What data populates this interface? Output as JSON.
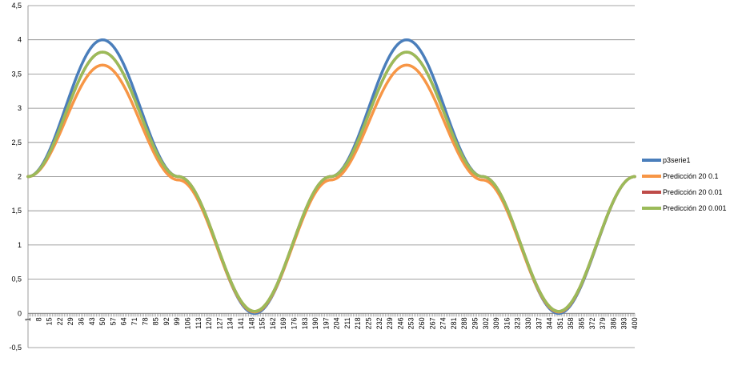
{
  "chart_data": {
    "type": "line",
    "title": "",
    "xlabel": "",
    "ylabel": "",
    "ylim": [
      -0.5,
      4.5
    ],
    "y_ticks": [
      -0.5,
      0,
      0.5,
      1,
      1.5,
      2,
      2.5,
      3,
      3.5,
      4,
      4.5
    ],
    "y_tick_labels": [
      "-0,5",
      "0",
      "0,5",
      "1",
      "1,5",
      "2",
      "2,5",
      "3",
      "3,5",
      "4",
      "4,5"
    ],
    "x_range": [
      1,
      400
    ],
    "x_tick_labels": [
      "1",
      "8",
      "15",
      "22",
      "29",
      "36",
      "43",
      "50",
      "57",
      "64",
      "71",
      "78",
      "85",
      "92",
      "99",
      "106",
      "113",
      "120",
      "127",
      "134",
      "141",
      "148",
      "155",
      "162",
      "169",
      "176",
      "183",
      "190",
      "197",
      "204",
      "211",
      "218",
      "225",
      "232",
      "239",
      "246",
      "253",
      "260",
      "267",
      "274",
      "281",
      "288",
      "295",
      "302",
      "309",
      "316",
      "323",
      "330",
      "337",
      "344",
      "351",
      "358",
      "365",
      "372",
      "379",
      "386",
      "393",
      "400"
    ],
    "grid": true,
    "legend_position": "right",
    "series": [
      {
        "name": "p3serie1",
        "color": "#4a7ebb",
        "x": [
          1,
          50,
          100,
          150,
          200,
          250,
          300,
          350,
          400
        ],
        "values": [
          2.0,
          4.0,
          2.0,
          0.0,
          2.0,
          4.0,
          2.0,
          0.0,
          2.0
        ]
      },
      {
        "name": "Predicción 20 0.1",
        "color": "#f79646",
        "x": [
          1,
          50,
          100,
          150,
          200,
          250,
          300,
          350,
          400
        ],
        "values": [
          2.0,
          3.63,
          1.95,
          0.02,
          1.95,
          3.63,
          1.95,
          0.02,
          2.0
        ]
      },
      {
        "name": "Predicción 20 0.01",
        "color": "#be4b48",
        "x": [
          1,
          50,
          100,
          150,
          200,
          250,
          300,
          350,
          400
        ],
        "values": [
          2.0,
          3.82,
          2.0,
          0.03,
          2.0,
          3.82,
          2.0,
          0.03,
          2.0
        ]
      },
      {
        "name": "Predicción 20 0.001",
        "color": "#9bbb59",
        "x": [
          1,
          50,
          100,
          150,
          200,
          250,
          300,
          350,
          400
        ],
        "values": [
          2.0,
          3.82,
          2.0,
          0.03,
          2.0,
          3.82,
          2.0,
          0.03,
          2.0
        ]
      }
    ]
  }
}
